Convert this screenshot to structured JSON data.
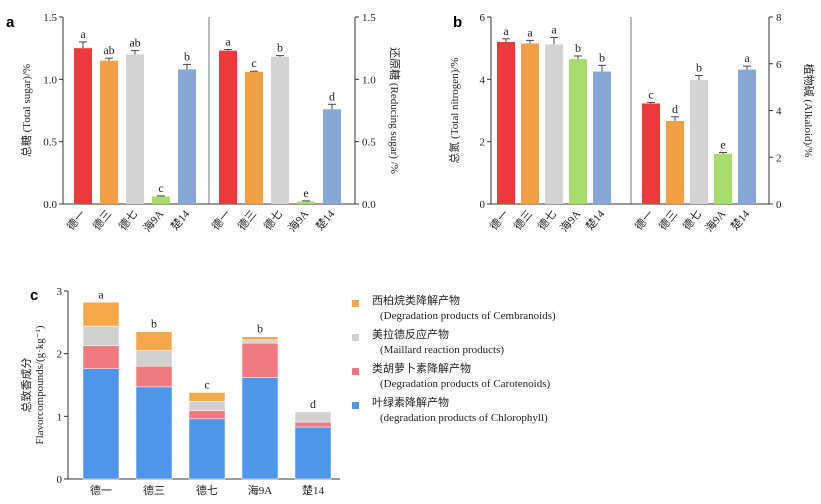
{
  "chart_data": [
    {
      "panel": "a",
      "type": "bar",
      "categories": [
        "德一",
        "德三",
        "德七",
        "海9A",
        "楚14"
      ],
      "colors": [
        "#ee3a3d",
        "#f2a043",
        "#d3d3d3",
        "#a8dc6c",
        "#87a8d6"
      ],
      "left": {
        "ylabel": "总糖 (Total sugar)/%",
        "ylim": [
          0,
          1.5
        ],
        "ticks": [
          "0.0",
          "0.5",
          "1.0",
          "1.5"
        ],
        "values": [
          1.25,
          1.15,
          1.2,
          0.06,
          1.08
        ],
        "errors": [
          0.05,
          0.02,
          0.03,
          0.005,
          0.04
        ],
        "letters": [
          "a",
          "ab",
          "ab",
          "c",
          "b"
        ]
      },
      "right": {
        "ylabel": "还原糖 (Reducing sugar) /%",
        "ylim": [
          0,
          1.5
        ],
        "ticks": [
          "0.0",
          "0.5",
          "1.0",
          "1.5"
        ],
        "values": [
          1.23,
          1.06,
          1.18,
          0.02,
          0.76
        ],
        "errors": [
          0.01,
          0.005,
          0.01,
          0.005,
          0.04
        ],
        "letters": [
          "a",
          "c",
          "b",
          "e",
          "d"
        ]
      }
    },
    {
      "panel": "b",
      "type": "bar",
      "categories": [
        "德一",
        "德三",
        "德七",
        "海9A",
        "楚14"
      ],
      "colors": [
        "#ee3a3d",
        "#f2a043",
        "#d3d3d3",
        "#a8dc6c",
        "#87a8d6"
      ],
      "left": {
        "ylabel": "总氮 (Total nitrogen)/%",
        "ylim": [
          0,
          6
        ],
        "ticks": [
          "0",
          "2",
          "4",
          "6"
        ],
        "values": [
          5.2,
          5.15,
          5.12,
          4.65,
          4.25
        ],
        "errors": [
          0.1,
          0.1,
          0.22,
          0.1,
          0.2
        ],
        "letters": [
          "a",
          "a",
          "a",
          "b",
          "b"
        ]
      },
      "right": {
        "ylabel": "植物碱 (Alkaloid)/%",
        "ylim": [
          0,
          8
        ],
        "ticks": [
          "0",
          "2",
          "4",
          "6",
          "8"
        ],
        "values": [
          4.3,
          3.55,
          5.3,
          2.15,
          5.75
        ],
        "errors": [
          0.05,
          0.18,
          0.2,
          0.05,
          0.15
        ],
        "letters": [
          "c",
          "d",
          "b",
          "e",
          "a"
        ]
      }
    },
    {
      "panel": "c",
      "type": "bar",
      "stacked": true,
      "categories": [
        "德一",
        "德三",
        "德七",
        "海9A",
        "楚14"
      ],
      "ylabel": "总致香成分",
      "ylabel2": "Flavorcompounds/(g·kg⁻¹)",
      "ylim": [
        0,
        3
      ],
      "ticks": [
        "0",
        "1",
        "2",
        "3"
      ],
      "letters": [
        "a",
        "b",
        "c",
        "b",
        "d"
      ],
      "series": [
        {
          "name": "叶绿素降解产物",
          "name_en": "(degradation products of Chlorophyll)",
          "color": "#4d96ea",
          "values": [
            1.76,
            1.47,
            0.96,
            1.62,
            0.83
          ]
        },
        {
          "name": "类胡萝卜素降解产物",
          "name_en": "(Degradation products of Carotenoids)",
          "color": "#f07a80",
          "values": [
            0.37,
            0.33,
            0.13,
            0.55,
            0.08
          ]
        },
        {
          "name": "美拉德反应产物",
          "name_en": "(Maillard reaction products)",
          "color": "#d0d0d0",
          "values": [
            0.31,
            0.25,
            0.15,
            0.05,
            0.16
          ]
        },
        {
          "name": "西柏烷类降解产物",
          "name_en": "(Degradation products of Cembranoids)",
          "color": "#f4a849",
          "values": [
            0.38,
            0.3,
            0.14,
            0.05,
            0.0
          ]
        }
      ]
    }
  ]
}
